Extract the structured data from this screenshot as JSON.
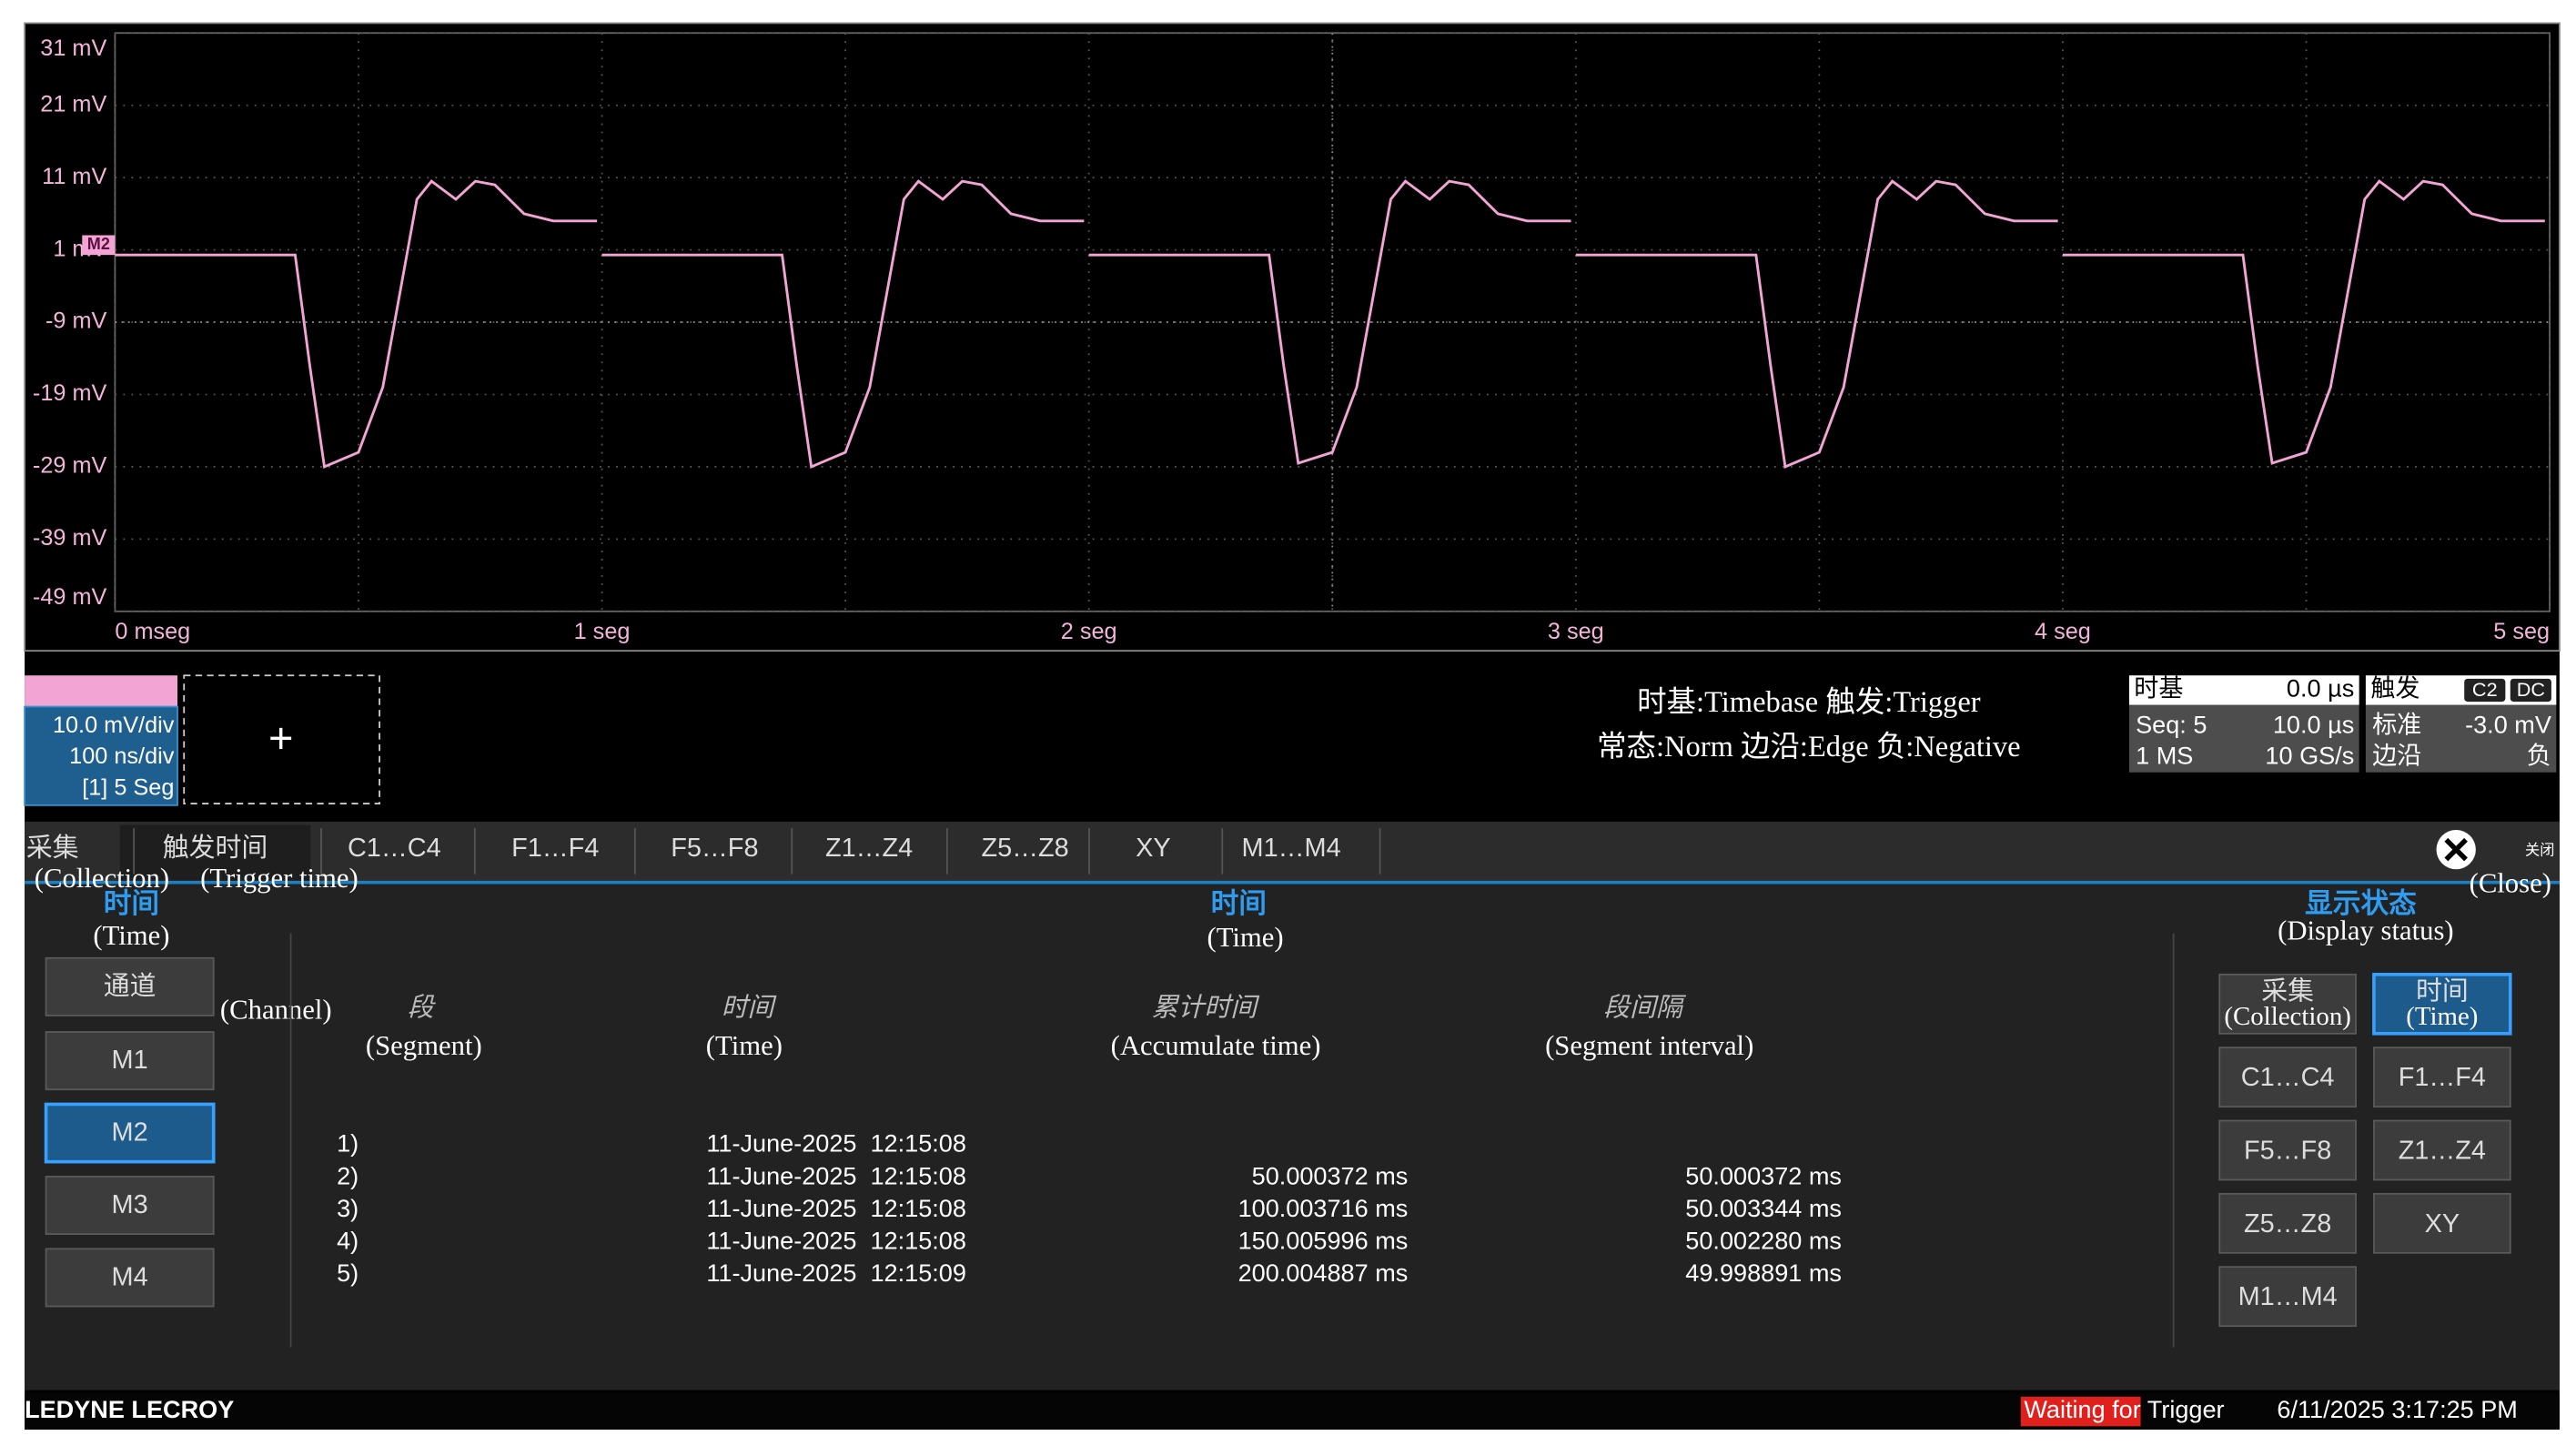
{
  "chart_data": {
    "type": "line",
    "x": [
      0,
      0.37,
      0.4,
      0.43,
      0.5,
      0.55,
      0.62,
      0.65,
      0.7,
      0.74,
      0.78,
      0.84,
      0.9,
      0.99,
      null,
      1,
      1.37,
      1.4,
      1.43,
      1.5,
      1.55,
      1.62,
      1.65,
      1.7,
      1.74,
      1.78,
      1.84,
      1.9,
      1.99,
      null,
      2,
      2.37,
      2.4,
      2.43,
      2.5,
      2.55,
      2.62,
      2.65,
      2.7,
      2.74,
      2.78,
      2.84,
      2.9,
      2.99,
      null,
      3,
      3.37,
      3.4,
      3.43,
      3.5,
      3.55,
      3.62,
      3.65,
      3.7,
      3.74,
      3.78,
      3.84,
      3.9,
      3.99,
      null,
      4,
      4.37,
      4.4,
      4.43,
      4.5,
      4.55,
      4.62,
      4.65,
      4.7,
      4.74,
      4.78,
      4.84,
      4.9,
      4.99
    ],
    "series": [
      {
        "name": "M2",
        "color": "#f2a4d4",
        "values": [
          0.3,
          0.3,
          -15,
          -29,
          -27,
          -18,
          8,
          10.5,
          8,
          10.5,
          10,
          6,
          5,
          5,
          null,
          0.3,
          0.3,
          -15,
          -29,
          -27,
          -18,
          8,
          10.5,
          8,
          10.5,
          10,
          6,
          5,
          5,
          null,
          0.3,
          0.3,
          -15,
          -28.5,
          -27,
          -18,
          8,
          10.5,
          8,
          10.5,
          10,
          6,
          5,
          5,
          null,
          0.3,
          0.3,
          -15,
          -29,
          -27,
          -18,
          8,
          10.5,
          8,
          10.5,
          10,
          6,
          5,
          5,
          null,
          0.3,
          0.3,
          -15,
          -28.5,
          -27,
          -18,
          8,
          10.5,
          8,
          10.5,
          10,
          6,
          5,
          5
        ]
      }
    ],
    "xlim": [
      0,
      5
    ],
    "xticks": [
      {
        "value": 0,
        "label": "0 mseg"
      },
      {
        "value": 1,
        "label": "1 seg"
      },
      {
        "value": 2,
        "label": "2 seg"
      },
      {
        "value": 3,
        "label": "3 seg"
      },
      {
        "value": 4,
        "label": "4 seg"
      },
      {
        "value": 5,
        "label": "5 seg"
      }
    ],
    "ylim": [
      -49,
      31
    ],
    "yticks": [
      {
        "value": 31,
        "label": "31 mV"
      },
      {
        "value": 21,
        "label": "21 mV"
      },
      {
        "value": 11,
        "label": "11 mV"
      },
      {
        "value": 1,
        "label": "1 mV"
      },
      {
        "value": -9,
        "label": "-9 mV"
      },
      {
        "value": -19,
        "label": "-19 mV"
      },
      {
        "value": -29,
        "label": "-29 mV"
      },
      {
        "value": -39,
        "label": "-39 mV"
      },
      {
        "value": -49,
        "label": "-49 mV"
      }
    ],
    "grid": true
  },
  "channel_box": {
    "lines": [
      "10.0 mV/div",
      "100 ns/div",
      "[1] 5 Seg"
    ]
  },
  "add_button": "+",
  "annotation": [
    "时基:Timebase 触发:Trigger",
    "常态:Norm 边沿:Edge 负:Negative"
  ],
  "timebase": {
    "title": "时基",
    "delay": "0.0 µs",
    "rows": [
      [
        "Seq: 5",
        "10.0 µs"
      ],
      [
        "1 MS",
        "10 GS/s"
      ]
    ]
  },
  "trigger": {
    "title": "触发",
    "coupling": [
      "C2",
      "DC"
    ],
    "rows": [
      [
        "标准",
        "-3.0 mV"
      ],
      [
        "边沿",
        "负"
      ]
    ]
  },
  "tabs": {
    "labels": [
      "采集",
      "触发时间",
      "C1…C4",
      "F1…F4",
      "F5…F8",
      "Z1…Z4",
      "Z5…Z8",
      "XY",
      "M1…M4"
    ],
    "selected": 1,
    "notes": [
      "(Collection)",
      "(Trigger time)"
    ]
  },
  "close": {
    "label": "关闭",
    "note": "(Close)"
  },
  "left_panel": {
    "title": "时间",
    "note": "(Time)",
    "buttons": [
      "通道",
      "M1",
      "M2",
      "M3",
      "M4"
    ],
    "selected": 2,
    "channel_note": "(Channel)"
  },
  "table": {
    "title": "时间",
    "note": "(Time)",
    "headers": [
      "段",
      "时间",
      "累计时间",
      "段间隔"
    ],
    "header_notes": [
      "(Segment)",
      "(Time)",
      "(Accumulate time)",
      "(Segment interval)"
    ],
    "rows": [
      [
        "1)",
        "11-June-2025  12:15:08"
      ],
      [
        "2)",
        "11-June-2025  12:15:08",
        "50.000372 ms",
        "50.000372 ms"
      ],
      [
        "3)",
        "11-June-2025  12:15:08",
        "100.003716 ms",
        "50.003344 ms"
      ],
      [
        "4)",
        "11-June-2025  12:15:08",
        "150.005996 ms",
        "50.002280 ms"
      ],
      [
        "5)",
        "11-June-2025  12:15:09",
        "200.004887 ms",
        "49.998891 ms"
      ]
    ]
  },
  "display_panel": {
    "title": "显示状态",
    "note": "(Display status)",
    "selected": 1,
    "buttons": [
      {
        "label": "采集",
        "note": "(Collection)"
      },
      {
        "label": "时间",
        "note": "(Time)"
      },
      {
        "label": "C1…C4"
      },
      {
        "label": "F1…F4"
      },
      {
        "label": "F5…F8"
      },
      {
        "label": "Z1…Z4"
      },
      {
        "label": "Z5…Z8"
      },
      {
        "label": "XY"
      },
      {
        "label": "M1…M4"
      }
    ]
  },
  "status_bar": {
    "brand": "LEDYNE LECROY",
    "status": "Waiting for Trigger",
    "datetime": "6/11/2025 3:17:25 PM"
  }
}
